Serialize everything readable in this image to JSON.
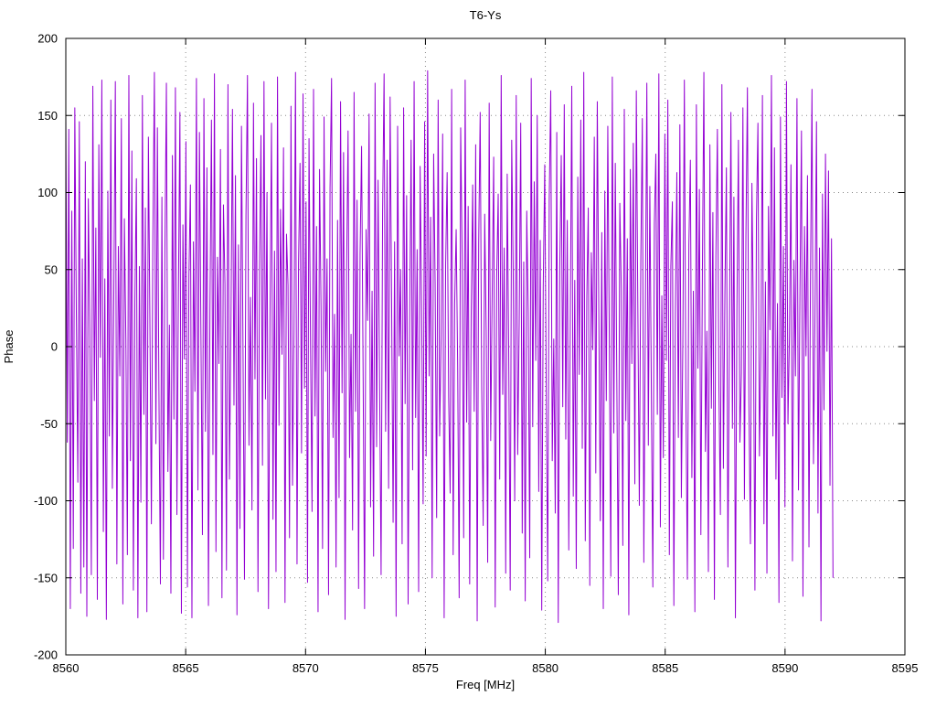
{
  "chart_data": {
    "type": "line",
    "title": "T6-Ys",
    "xlabel": "Freq [MHz]",
    "ylabel": "Phase",
    "xlim": [
      8560,
      8595
    ],
    "ylim": [
      -200,
      200
    ],
    "x_ticks": [
      8560,
      8565,
      8570,
      8575,
      8580,
      8585,
      8590,
      8595
    ],
    "y_ticks": [
      -200,
      -150,
      -100,
      -50,
      0,
      50,
      100,
      150,
      200
    ],
    "grid": true,
    "legend": "none",
    "line_color": "#9400d3",
    "x_start": 8560.0,
    "x_end": 8592.0,
    "phase_values": [
      150,
      -62,
      141,
      -170,
      88,
      -131,
      155,
      23,
      -88,
      146,
      -160,
      57,
      -143,
      120,
      -175,
      96,
      12,
      -148,
      169,
      -35,
      77,
      -164,
      131,
      -7,
      173,
      -120,
      44,
      -177,
      101,
      -58,
      160,
      -92,
      38,
      172,
      -141,
      65,
      -19,
      148,
      -167,
      83,
      5,
      -135,
      176,
      -74,
      127,
      -158,
      29,
      109,
      -176,
      52,
      -101,
      163,
      -44,
      90,
      -172,
      136,
      18,
      -115,
      71,
      178,
      -63,
      142,
      -26,
      -154,
      97,
      -138,
      61,
      171,
      -81,
      14,
      -160,
      124,
      -47,
      168,
      -109,
      35,
      152,
      -173,
      79,
      -8,
      133,
      -156,
      46,
      105,
      -176,
      68,
      -29,
      174,
      -93,
      139,
      8,
      -122,
      161,
      -55,
      116,
      -168,
      24,
      147,
      -70,
      177,
      -133,
      58,
      -11,
      128,
      -163,
      92,
      41,
      -145,
      170,
      -86,
      15,
      154,
      -38,
      111,
      -174,
      66,
      -118,
      143,
      3,
      -151,
      85,
      176,
      -64,
      32,
      -106,
      158,
      -21,
      122,
      -159,
      49,
      137,
      -77,
      172,
      -34,
      100,
      -170,
      19,
      145,
      -112,
      62,
      -146,
      175,
      -51,
      89,
      -5,
      129,
      -166,
      73,
      40,
      -124,
      156,
      -90,
      11,
      178,
      -141,
      54,
      119,
      -69,
      164,
      -27,
      94,
      -153,
      135,
      1,
      -107,
      167,
      -45,
      78,
      -172,
      115,
      26,
      -131,
      149,
      -16,
      57,
      -161,
      103,
      174,
      -59,
      21,
      -143,
      82,
      -98,
      159,
      -30,
      126,
      -177,
      47,
      140,
      -72,
      8,
      -119,
      165,
      -42,
      95,
      -157,
      60,
      130,
      -13,
      -170,
      76,
      17,
      151,
      -104,
      36,
      -136,
      171,
      -65,
      108,
      -24,
      -148,
      87,
      177,
      -55,
      121,
      -92,
      162,
      30,
      -114,
      68,
      -175,
      143,
      -6,
      50,
      -128,
      155,
      -37,
      98,
      -167,
      14,
      134,
      -80,
      172,
      -46,
      63,
      -159,
      117,
      25,
      -102,
      146,
      -71,
      179,
      -19,
      84,
      -150,
      125,
      41,
      -111,
      160,
      -58,
      7,
      138,
      -176,
      53,
      113,
      -33,
      -95,
      167,
      -135,
      28,
      76,
      -12,
      -163,
      142,
      59,
      -124,
      173,
      -49,
      91,
      -154,
      20,
      105,
      -42,
      131,
      -178,
      67,
      152,
      -26,
      -116,
      86,
      10,
      -140,
      158,
      -61,
      35,
      123,
      -169,
      45,
      99,
      -86,
      176,
      -31,
      64,
      -147,
      112,
      -4,
      -158,
      134,
      48,
      -100,
      163,
      -70,
      16,
      145,
      -121,
      55,
      -165,
      88,
      22,
      -137,
      174,
      -52,
      107,
      -9,
      150,
      -94,
      69,
      -171,
      39,
      118,
      -28,
      -152,
      96,
      166,
      -74,
      5,
      -108,
      139,
      -179,
      51,
      124,
      -39,
      157,
      -60,
      82,
      -132,
      13,
      169,
      -97,
      43,
      -144,
      110,
      -18,
      147,
      -66,
      178,
      -126,
      31,
      90,
      -155,
      61,
      -2,
      136,
      -82,
      159,
      24,
      -113,
      74,
      -170,
      101,
      -35,
      143,
      7,
      -149,
      175,
      -56,
      119,
      -22,
      -161,
      93,
      37,
      -129,
      154,
      -48,
      70,
      -174,
      115,
      -11,
      132,
      -89,
      166,
      27,
      -103,
      58,
      148,
      -140,
      17,
      171,
      -64,
      104,
      -27,
      -156,
      80,
      125,
      -44,
      177,
      -117,
      33,
      -72,
      138,
      -9,
      160,
      -135,
      52,
      94,
      -168,
      21,
      113,
      -59,
      144,
      -98,
      4,
      173,
      -30,
      -151,
      66,
      121,
      -85,
      36,
      -172,
      157,
      -14,
      102,
      -122,
      47,
      178,
      -68,
      10,
      -146,
      131,
      -40,
      87,
      -164,
      59,
      141,
      -25,
      -109,
      170,
      -79,
      34,
      116,
      -143,
      6,
      152,
      -53,
      97,
      -176,
      23,
      134,
      -62,
      -17,
      155,
      -99,
      72,
      168,
      -37,
      -128,
      106,
      15,
      -158,
      83,
      145,
      -71,
      -3,
      163,
      -115,
      42,
      -147,
      91,
      11,
      176,
      -58,
      129,
      -86,
      28,
      -166,
      149,
      -33,
      65,
      -104,
      172,
      -50,
      7,
      118,
      -139,
      56,
      -19,
      161,
      -93,
      37,
      140,
      -162,
      78,
      -6,
      111,
      -130,
      45,
      167,
      -76,
      19,
      146,
      -108,
      64,
      -178,
      99,
      -41,
      125,
      -3,
      114,
      -90,
      70,
      -150
    ]
  }
}
